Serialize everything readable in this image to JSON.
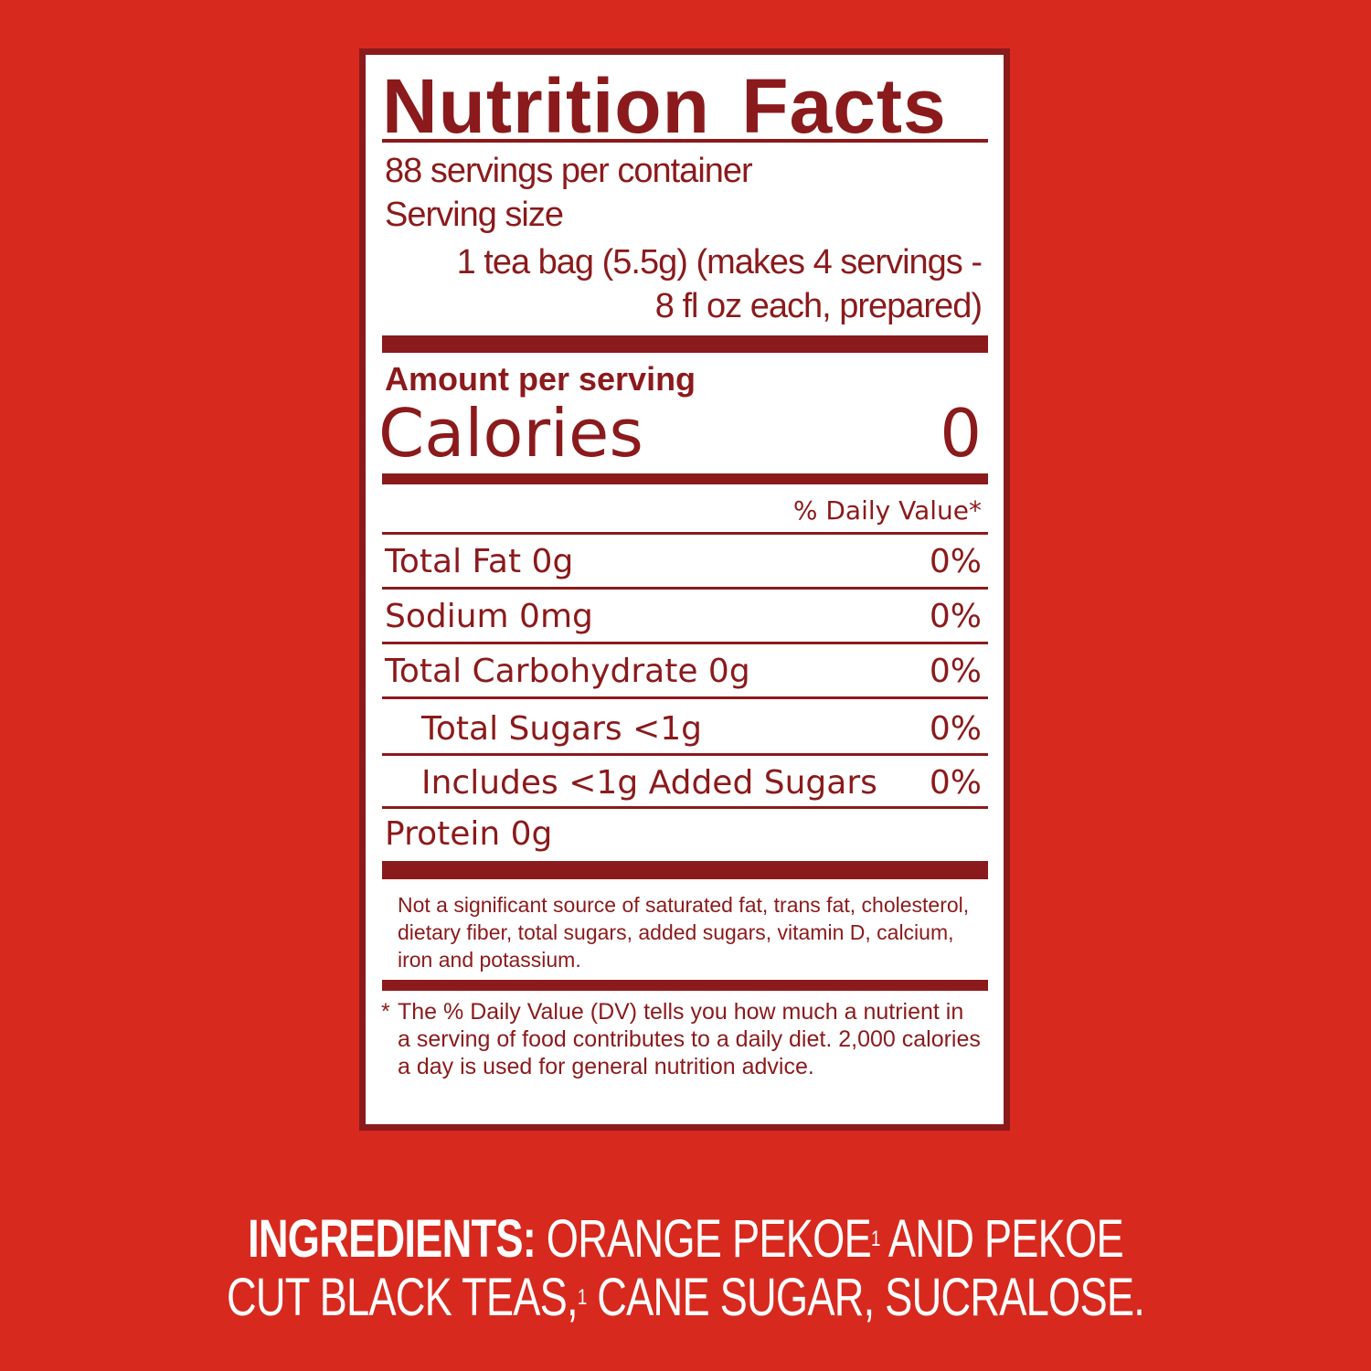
{
  "title": "Nutrition Facts",
  "servings_per_container": "88 servings per container",
  "serving_size_label": "Serving size",
  "serving_size_line1": "1 tea bag (5.5g) (makes 4 servings -",
  "serving_size_line2": "8 fl oz each, prepared)",
  "amount_per_serving": "Amount per serving",
  "calories_label": "Calories",
  "calories_value": "0",
  "daily_value_header": "% Daily Value*",
  "nutrients": [
    {
      "label": "Total Fat 0g",
      "dv": "0%"
    },
    {
      "label": "Sodium 0mg",
      "dv": "0%"
    },
    {
      "label": "Total Carbohydrate 0g",
      "dv": "0%"
    },
    {
      "label": "Total Sugars <1g",
      "dv": "0%"
    },
    {
      "label": "Includes <1g Added Sugars",
      "dv": "0%"
    },
    {
      "label": "Protein 0g",
      "dv": ""
    }
  ],
  "not_significant_note": "Not a significant source of saturated fat, trans fat, cholesterol, dietary fiber, total sugars, added sugars, vitamin D, calcium, iron and potassium.",
  "footnote_marker": "*",
  "footnote": "The % Daily Value (DV) tells you how much a nutrient in a serving of food contributes to a daily diet. 2,000 calories a day is used for general nutrition advice.",
  "ingredients": {
    "heading": "INGREDIENTS:",
    "line1_text": "ORANGE PEKOE",
    "line1_sup": "1",
    "line1_rest": "AND PEKOE",
    "line2_text": "CUT BLACK TEAS,",
    "line2_sup": "1",
    "line2_rest": "CANE SUGAR, SUCRALOSE."
  },
  "colors": {
    "background": "#d8291f",
    "label_text": "#8b1a1c",
    "label_bg": "#ffffff"
  }
}
